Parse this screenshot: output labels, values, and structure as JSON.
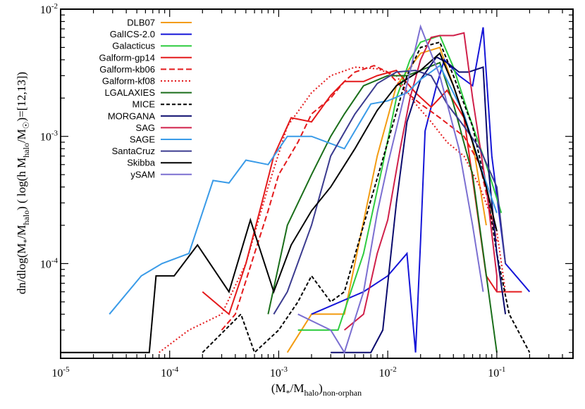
{
  "chart_data": {
    "type": "line",
    "x_scale": "log",
    "y_scale": "log",
    "xlim": [
      1e-05,
      0.5
    ],
    "ylim": [
      1.8e-05,
      0.01
    ],
    "grid": false,
    "legend_position": "top-left",
    "xlabel_parts": {
      "open": "(M",
      "sub1": "*",
      "mid": "/M",
      "sub2": "halo",
      "close": ")",
      "sub3": "non-orphan"
    },
    "ylabel_parts": {
      "a": "dn/dlog(M",
      "b": "*",
      "c": "/M",
      "d": "halo",
      "e": ")   ( log(h M",
      "f": "halo",
      "g": "/M",
      "h": "☉",
      "i": ")=[12,13])"
    },
    "x_ticks": [
      {
        "value": 1e-05,
        "base": "10",
        "exp": "-5"
      },
      {
        "value": 0.0001,
        "base": "10",
        "exp": "-4"
      },
      {
        "value": 0.001,
        "base": "10",
        "exp": "-3"
      },
      {
        "value": 0.01,
        "base": "10",
        "exp": "-2"
      },
      {
        "value": 0.1,
        "base": "10",
        "exp": "-1"
      }
    ],
    "y_ticks": [
      {
        "value": 0.0001,
        "base": "10",
        "exp": "-4"
      },
      {
        "value": 0.001,
        "base": "10",
        "exp": "-3"
      },
      {
        "value": 0.01,
        "base": "10",
        "exp": "-2"
      }
    ],
    "series": [
      {
        "name": "DLB07",
        "color": "#f39c12",
        "dash": "solid",
        "points": [
          [
            0.0012,
            2e-05
          ],
          [
            0.002,
            4e-05
          ],
          [
            0.003,
            4e-05
          ],
          [
            0.004,
            4e-05
          ],
          [
            0.0055,
            0.00015
          ],
          [
            0.008,
            0.0007
          ],
          [
            0.012,
            0.0025
          ],
          [
            0.02,
            0.0045
          ],
          [
            0.03,
            0.005
          ],
          [
            0.04,
            0.0025
          ],
          [
            0.06,
            0.0009
          ],
          [
            0.08,
            0.0002
          ]
        ]
      },
      {
        "name": "GalICS-2.0",
        "color": "#1515d8",
        "dash": "solid",
        "points": [
          [
            0.002,
            4e-05
          ],
          [
            0.006,
            6e-05
          ],
          [
            0.01,
            8e-05
          ],
          [
            0.015,
            0.00012
          ],
          [
            0.018,
            2e-05
          ],
          [
            0.02,
            0.00015
          ],
          [
            0.022,
            0.0011
          ],
          [
            0.028,
            0.0025
          ],
          [
            0.033,
            0.004
          ],
          [
            0.045,
            0.003
          ],
          [
            0.06,
            0.0025
          ],
          [
            0.075,
            0.0072
          ],
          [
            0.09,
            0.0007
          ],
          [
            0.12,
            0.0001
          ],
          [
            0.2,
            6e-05
          ]
        ]
      },
      {
        "name": "Galacticus",
        "color": "#2ecc40",
        "dash": "solid",
        "points": [
          [
            0.0015,
            3e-05
          ],
          [
            0.0035,
            3e-05
          ],
          [
            0.006,
            0.00012
          ],
          [
            0.009,
            0.0006
          ],
          [
            0.012,
            0.002
          ],
          [
            0.016,
            0.004
          ],
          [
            0.02,
            0.0055
          ],
          [
            0.03,
            0.0062
          ],
          [
            0.04,
            0.0035
          ],
          [
            0.055,
            0.0015
          ],
          [
            0.08,
            0.0006
          ],
          [
            0.11,
            0.00025
          ]
        ]
      },
      {
        "name": "Galform-gp14",
        "color": "#e41a1c",
        "dash": "solid",
        "points": [
          [
            0.0002,
            6e-05
          ],
          [
            0.00035,
            4e-05
          ],
          [
            0.0005,
            0.0001
          ],
          [
            0.0007,
            0.0003
          ],
          [
            0.0009,
            0.0007
          ],
          [
            0.0013,
            0.0014
          ],
          [
            0.002,
            0.0013
          ],
          [
            0.003,
            0.0021
          ],
          [
            0.004,
            0.0027
          ],
          [
            0.006,
            0.0027
          ],
          [
            0.008,
            0.003
          ],
          [
            0.012,
            0.0033
          ],
          [
            0.018,
            0.0022
          ],
          [
            0.025,
            0.0017
          ],
          [
            0.035,
            0.0023
          ],
          [
            0.05,
            0.0014
          ],
          [
            0.08,
            8e-05
          ],
          [
            0.1,
            6e-05
          ],
          [
            0.17,
            6e-05
          ]
        ]
      },
      {
        "name": "Galform-kb06",
        "color": "#e41a1c",
        "dash": "8,4",
        "points": [
          [
            0.0003,
            3e-05
          ],
          [
            0.0004,
            4e-05
          ],
          [
            0.0006,
            0.00012
          ],
          [
            0.0008,
            0.00026
          ],
          [
            0.001,
            0.0005
          ],
          [
            0.0015,
            0.0009
          ],
          [
            0.002,
            0.0015
          ],
          [
            0.003,
            0.002
          ],
          [
            0.004,
            0.0027
          ],
          [
            0.005,
            0.0032
          ],
          [
            0.0075,
            0.0036
          ],
          [
            0.01,
            0.0032
          ],
          [
            0.015,
            0.0022
          ],
          [
            0.02,
            0.0018
          ],
          [
            0.03,
            0.0014
          ],
          [
            0.05,
            0.001
          ],
          [
            0.07,
            0.0006
          ],
          [
            0.1,
            0.00015
          ]
        ]
      },
      {
        "name": "Galform-kf08",
        "color": "#e41a1c",
        "dash": "2,3",
        "points": [
          [
            8e-05,
            2e-05
          ],
          [
            0.00015,
            3e-05
          ],
          [
            0.0003,
            4e-05
          ],
          [
            0.0005,
            0.0001
          ],
          [
            0.0008,
            0.0004
          ],
          [
            0.0012,
            0.0012
          ],
          [
            0.002,
            0.0022
          ],
          [
            0.003,
            0.003
          ],
          [
            0.005,
            0.0035
          ],
          [
            0.008,
            0.0034
          ],
          [
            0.012,
            0.003
          ],
          [
            0.018,
            0.0018
          ],
          [
            0.025,
            0.0013
          ],
          [
            0.035,
            0.0009
          ],
          [
            0.05,
            0.0007
          ],
          [
            0.07,
            0.0004
          ],
          [
            0.1,
            0.00018
          ],
          [
            0.12,
            6e-05
          ]
        ]
      },
      {
        "name": "LGALAXIES",
        "color": "#1a6e1a",
        "dash": "solid",
        "points": [
          [
            0.0008,
            4e-05
          ],
          [
            0.0012,
            0.0002
          ],
          [
            0.002,
            0.0005
          ],
          [
            0.003,
            0.001
          ],
          [
            0.004,
            0.0015
          ],
          [
            0.006,
            0.0025
          ],
          [
            0.01,
            0.003
          ],
          [
            0.015,
            0.003
          ],
          [
            0.02,
            0.0033
          ],
          [
            0.03,
            0.0038
          ],
          [
            0.04,
            0.0018
          ],
          [
            0.06,
            0.0005
          ],
          [
            0.1,
            2e-05
          ]
        ]
      },
      {
        "name": "MICE",
        "color": "#000000",
        "dash": "5,3",
        "points": [
          [
            0.0002,
            2e-05
          ],
          [
            0.00045,
            4e-05
          ],
          [
            0.0006,
            2e-05
          ],
          [
            0.001,
            3e-05
          ],
          [
            0.0015,
            5e-05
          ],
          [
            0.002,
            8e-05
          ],
          [
            0.003,
            5e-05
          ],
          [
            0.004,
            6e-05
          ],
          [
            0.006,
            0.0002
          ],
          [
            0.01,
            0.0009
          ],
          [
            0.015,
            0.003
          ],
          [
            0.02,
            0.005
          ],
          [
            0.03,
            0.0055
          ],
          [
            0.04,
            0.003
          ],
          [
            0.06,
            0.0012
          ],
          [
            0.08,
            0.0004
          ],
          [
            0.1,
            0.00012
          ],
          [
            0.13,
            4e-05
          ],
          [
            0.2,
            2e-05
          ]
        ]
      },
      {
        "name": "MORGANA",
        "color": "#0b0b6e",
        "dash": "solid",
        "points": [
          [
            0.003,
            2e-05
          ],
          [
            0.007,
            2e-05
          ],
          [
            0.009,
            3e-05
          ],
          [
            0.012,
            0.0003
          ],
          [
            0.015,
            0.0013
          ],
          [
            0.02,
            0.0028
          ],
          [
            0.028,
            0.0042
          ],
          [
            0.035,
            0.0038
          ],
          [
            0.045,
            0.0032
          ],
          [
            0.055,
            0.0032
          ],
          [
            0.075,
            0.0035
          ],
          [
            0.085,
            0.0005
          ],
          [
            0.1,
            0.00012
          ],
          [
            0.12,
            4e-05
          ]
        ]
      },
      {
        "name": "SAG",
        "color": "#d0204a",
        "dash": "solid",
        "points": [
          [
            0.004,
            3e-05
          ],
          [
            0.006,
            4e-05
          ],
          [
            0.008,
            0.00012
          ],
          [
            0.01,
            0.00022
          ],
          [
            0.013,
            0.0008
          ],
          [
            0.016,
            0.002
          ],
          [
            0.02,
            0.004
          ],
          [
            0.025,
            0.006
          ],
          [
            0.03,
            0.0062
          ],
          [
            0.04,
            0.0062
          ],
          [
            0.05,
            0.0065
          ],
          [
            0.06,
            0.002
          ],
          [
            0.08,
            0.0004
          ],
          [
            0.1,
            8e-05
          ],
          [
            0.1,
            6e-05
          ]
        ]
      },
      {
        "name": "SAGE",
        "color": "#3a9be8",
        "dash": "solid",
        "points": [
          [
            2.8e-05,
            4e-05
          ],
          [
            5.5e-05,
            8e-05
          ],
          [
            8.5e-05,
            0.0001
          ],
          [
            0.00015,
            0.00012
          ],
          [
            0.00025,
            0.00045
          ],
          [
            0.00035,
            0.00043
          ],
          [
            0.0005,
            0.00065
          ],
          [
            0.0008,
            0.0006
          ],
          [
            0.0012,
            0.001
          ],
          [
            0.002,
            0.001
          ],
          [
            0.004,
            0.0008
          ],
          [
            0.007,
            0.0018
          ],
          [
            0.01,
            0.0019
          ],
          [
            0.015,
            0.0022
          ],
          [
            0.02,
            0.0028
          ],
          [
            0.03,
            0.0036
          ],
          [
            0.05,
            0.0015
          ],
          [
            0.07,
            0.0006
          ],
          [
            0.1,
            0.00025
          ]
        ]
      },
      {
        "name": "SantaCruz",
        "color": "#3b3b8f",
        "dash": "solid",
        "points": [
          [
            0.0009,
            4e-05
          ],
          [
            0.0012,
            6e-05
          ],
          [
            0.002,
            0.0002
          ],
          [
            0.003,
            0.0007
          ],
          [
            0.005,
            0.0015
          ],
          [
            0.008,
            0.0026
          ],
          [
            0.012,
            0.0032
          ],
          [
            0.018,
            0.0033
          ],
          [
            0.025,
            0.003
          ],
          [
            0.035,
            0.0018
          ],
          [
            0.05,
            0.0012
          ],
          [
            0.07,
            0.0008
          ],
          [
            0.1,
            0.0004
          ],
          [
            0.12,
            0.0001
          ]
        ]
      },
      {
        "name": "Skibba",
        "color": "#000000",
        "dash": "solid",
        "points": [
          [
            2.5e-06,
            2e-05
          ],
          [
            6.5e-05,
            2e-05
          ],
          [
            7.5e-05,
            8e-05
          ],
          [
            0.00011,
            8e-05
          ],
          [
            0.00018,
            0.00014
          ],
          [
            0.00035,
            6e-05
          ],
          [
            0.00055,
            0.00022
          ],
          [
            0.0009,
            6e-05
          ],
          [
            0.0013,
            0.00014
          ],
          [
            0.002,
            0.00026
          ],
          [
            0.003,
            0.0004
          ],
          [
            0.005,
            0.0008
          ],
          [
            0.008,
            0.0016
          ],
          [
            0.012,
            0.0025
          ],
          [
            0.02,
            0.0033
          ],
          [
            0.03,
            0.0045
          ],
          [
            0.04,
            0.0025
          ],
          [
            0.06,
            0.0009
          ],
          [
            0.08,
            0.0004
          ],
          [
            0.1,
            0.00018
          ]
        ]
      },
      {
        "name": "ySAM",
        "color": "#7b6fd1",
        "dash": "solid",
        "points": [
          [
            0.0015,
            4e-05
          ],
          [
            0.003,
            3e-05
          ],
          [
            0.004,
            2e-05
          ],
          [
            0.006,
            6e-05
          ],
          [
            0.008,
            0.00025
          ],
          [
            0.01,
            0.0006
          ],
          [
            0.014,
            0.002
          ],
          [
            0.02,
            0.0073
          ],
          [
            0.03,
            0.003
          ],
          [
            0.045,
            0.0008
          ],
          [
            0.06,
            0.0002
          ],
          [
            0.075,
            6e-05
          ]
        ]
      }
    ]
  }
}
